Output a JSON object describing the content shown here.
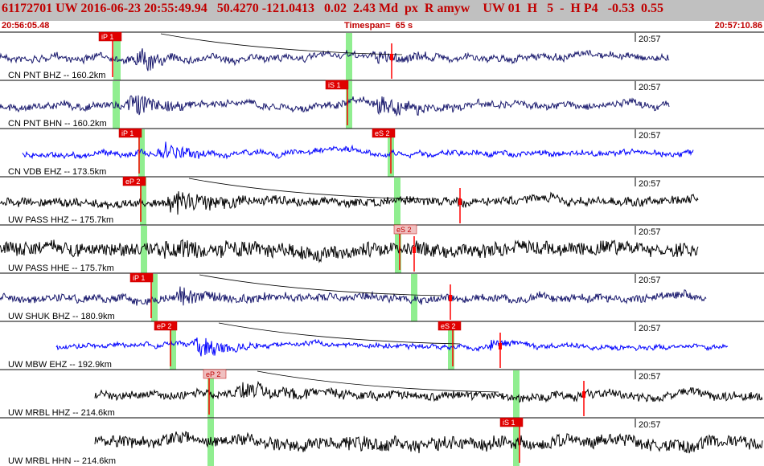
{
  "header": {
    "title": "61172701 UW 2016-06-23 20:55:49.94   50.4270 -121.0413   0.02  2.43 Md  px  R amyw    UW 01  H   5  -  H P4   -0.53  0.55",
    "start_time": "20:56:05.48",
    "timespan": "Timespan=  65 s",
    "end_time": "20:57:10.86"
  },
  "colors": {
    "title_bar": "#c0c0c0",
    "title_text": "#c00000",
    "pick_marker": "#ff0000",
    "pick_window": "#90ee90",
    "trace_navy": "#1a1a6e",
    "trace_blue": "#0000ff",
    "trace_black": "#000000"
  },
  "tick_label": "20:57",
  "traces": [
    {
      "label": "CN PNT BHZ -- 160.2km",
      "color": "navy",
      "picks": [
        "iP 1"
      ]
    },
    {
      "label": "CN PNT BHN -- 160.2km",
      "color": "navy",
      "picks": [
        "iS 1"
      ]
    },
    {
      "label": "CN VDB EHZ -- 173.5km",
      "color": "blue",
      "picks": [
        "iP 1",
        "eS 2"
      ]
    },
    {
      "label": "UW PASS HHZ -- 175.7km",
      "color": "black",
      "picks": [
        "eP 2"
      ]
    },
    {
      "label": "UW PASS HHE -- 175.7km",
      "color": "black",
      "picks": [
        "eS 2"
      ]
    },
    {
      "label": "UW SHUK BHZ -- 180.9km",
      "color": "navy",
      "picks": [
        "iP 1"
      ]
    },
    {
      "label": "UW MBW EHZ -- 192.9km",
      "color": "blue",
      "picks": [
        "eP 2",
        "eS 2"
      ]
    },
    {
      "label": "UW MRBL HHZ -- 214.6km",
      "color": "black",
      "picks": [
        "eP 2"
      ]
    },
    {
      "label": "UW MRBL HHN -- 214.6km",
      "color": "black",
      "picks": [
        "iS 1"
      ]
    }
  ]
}
